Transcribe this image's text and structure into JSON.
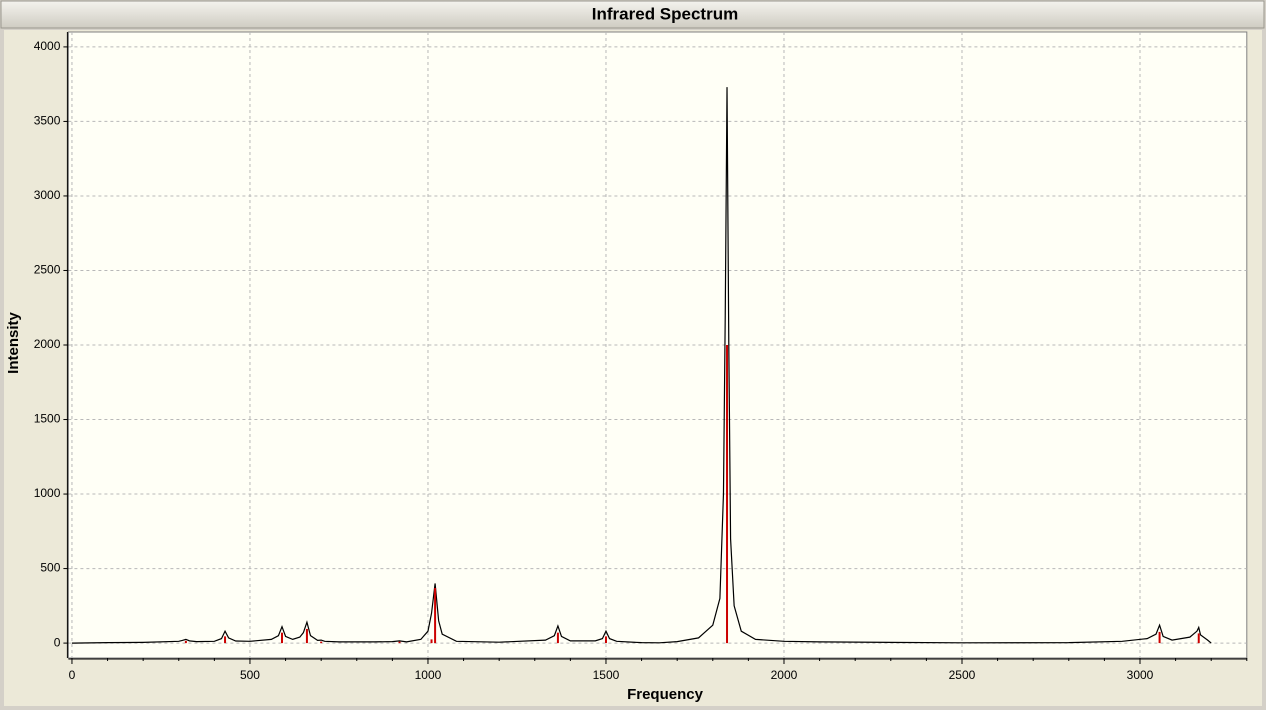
{
  "chart_data": {
    "type": "line",
    "title": "Infrared Spectrum",
    "x_label": "Frequency",
    "y_label": "Intensity",
    "xlim": [
      -10,
      3300
    ],
    "ylim": [
      -100,
      4100
    ],
    "xticks": [
      0,
      500,
      1000,
      1500,
      2000,
      2500,
      3000
    ],
    "xminorticks": [
      100,
      200,
      300,
      400,
      600,
      700,
      800,
      900,
      1100,
      1200,
      1300,
      1400,
      1600,
      1700,
      1800,
      1900,
      2100,
      2200,
      2300,
      2400,
      2600,
      2700,
      2800,
      2900,
      3100,
      3200,
      3300
    ],
    "yticks": [
      0,
      500,
      1000,
      1500,
      2000,
      2500,
      3000,
      3500,
      4000
    ],
    "grid": true,
    "series": [
      {
        "style": "line",
        "color": "#000000",
        "x": [
          0,
          100,
          200,
          300,
          310,
          320,
          330,
          350,
          400,
          420,
          430,
          440,
          460,
          500,
          560,
          580,
          590,
          600,
          620,
          640,
          650,
          660,
          670,
          690,
          700,
          710,
          750,
          850,
          900,
          920,
          940,
          980,
          1000,
          1010,
          1020,
          1030,
          1040,
          1080,
          1200,
          1330,
          1355,
          1365,
          1375,
          1400,
          1470,
          1490,
          1500,
          1510,
          1530,
          1600,
          1650,
          1700,
          1760,
          1800,
          1820,
          1830,
          1835,
          1840,
          1845,
          1850,
          1860,
          1880,
          1920,
          2000,
          2100,
          2500,
          2800,
          2950,
          3020,
          3045,
          3055,
          3065,
          3090,
          3140,
          3160,
          3165,
          3170,
          3190,
          3200
        ],
        "values": [
          0,
          3,
          5,
          12,
          18,
          25,
          15,
          10,
          12,
          30,
          80,
          35,
          14,
          12,
          25,
          50,
          110,
          45,
          25,
          40,
          70,
          140,
          50,
          18,
          20,
          12,
          8,
          8,
          10,
          15,
          8,
          25,
          80,
          200,
          400,
          150,
          60,
          12,
          6,
          20,
          50,
          115,
          45,
          15,
          15,
          30,
          80,
          30,
          12,
          3,
          2,
          10,
          35,
          120,
          300,
          1000,
          2200,
          3730,
          2000,
          700,
          250,
          80,
          25,
          12,
          8,
          2,
          3,
          12,
          30,
          60,
          120,
          45,
          20,
          40,
          80,
          105,
          55,
          20,
          0
        ]
      },
      {
        "style": "stick",
        "color": "#cc0000",
        "x": [
          320,
          430,
          590,
          660,
          700,
          920,
          1010,
          1020,
          1365,
          1500,
          1840,
          3055,
          3165
        ],
        "values": [
          15,
          45,
          70,
          95,
          10,
          10,
          25,
          370,
          70,
          45,
          2000,
          75,
          65
        ]
      }
    ]
  }
}
